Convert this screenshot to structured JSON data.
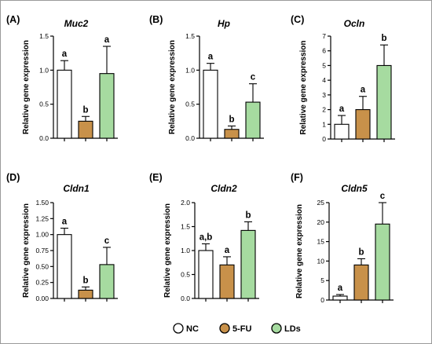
{
  "legend": {
    "items": [
      {
        "label": "NC",
        "color": "#ffffff"
      },
      {
        "label": "5-FU",
        "color": "#c8914a"
      },
      {
        "label": "LDs",
        "color": "#a6dba0"
      }
    ]
  },
  "chart_data": [
    {
      "type": "bar",
      "panel": "(A)",
      "title": "Muc2",
      "ylabel": "Relative gene expression",
      "categories": [
        "NC",
        "5-FU",
        "LDs"
      ],
      "values": [
        1.0,
        0.25,
        0.95
      ],
      "errors": [
        0.14,
        0.07,
        0.4
      ],
      "letters": [
        "a",
        "b",
        "a"
      ],
      "ylim": [
        0,
        1.5
      ],
      "yticks": [
        0.0,
        0.5,
        1.0,
        1.5
      ],
      "ytick_labels": [
        "0.0",
        "0.5",
        "1.0",
        "1.5"
      ]
    },
    {
      "type": "bar",
      "panel": "(B)",
      "title": "Hp",
      "ylabel": "Relative gene expression",
      "categories": [
        "NC",
        "5-FU",
        "LDs"
      ],
      "values": [
        1.0,
        0.13,
        0.53
      ],
      "errors": [
        0.1,
        0.05,
        0.27
      ],
      "letters": [
        "a",
        "b",
        "c"
      ],
      "ylim": [
        0,
        1.5
      ],
      "yticks": [
        0.0,
        0.5,
        1.0,
        1.5
      ],
      "ytick_labels": [
        "0.0",
        "0.5",
        "1.0",
        "1.5"
      ]
    },
    {
      "type": "bar",
      "panel": "(C)",
      "title": "Ocln",
      "ylabel": "Relative gene expression",
      "categories": [
        "NC",
        "5-FU",
        "LDs"
      ],
      "values": [
        1.0,
        2.0,
        5.0
      ],
      "errors": [
        0.6,
        0.9,
        1.4
      ],
      "letters": [
        "a",
        "a",
        "b"
      ],
      "ylim": [
        0,
        7
      ],
      "yticks": [
        0,
        1,
        2,
        3,
        4,
        5,
        6,
        7
      ],
      "ytick_labels": [
        "0",
        "1",
        "2",
        "3",
        "4",
        "5",
        "6",
        "7"
      ]
    },
    {
      "type": "bar",
      "panel": "(D)",
      "title": "Cldn1",
      "ylabel": "Relative gene expression",
      "categories": [
        "NC",
        "5-FU",
        "LDs"
      ],
      "values": [
        1.0,
        0.13,
        0.53
      ],
      "errors": [
        0.1,
        0.05,
        0.27
      ],
      "letters": [
        "a",
        "b",
        "c"
      ],
      "ylim": [
        0,
        1.5
      ],
      "yticks": [
        0.0,
        0.25,
        0.5,
        0.75,
        1.0,
        1.25,
        1.5
      ],
      "ytick_labels": [
        "0.00",
        "0.25",
        "0.50",
        "0.75",
        "1.00",
        "1.25",
        "1.50"
      ]
    },
    {
      "type": "bar",
      "panel": "(E)",
      "title": "Cldn2",
      "ylabel": "Relative gene expression",
      "categories": [
        "NC",
        "5-FU",
        "LDs"
      ],
      "values": [
        1.0,
        0.7,
        1.42
      ],
      "errors": [
        0.14,
        0.17,
        0.18
      ],
      "letters": [
        "a,b",
        "a",
        "b"
      ],
      "ylim": [
        0,
        2.0
      ],
      "yticks": [
        0.0,
        0.5,
        1.0,
        1.5,
        2.0
      ],
      "ytick_labels": [
        "0.0",
        "0.5",
        "1.0",
        "1.5",
        "2.0"
      ]
    },
    {
      "type": "bar",
      "panel": "(F)",
      "title": "Cldn5",
      "ylabel": "Relative gene expression",
      "categories": [
        "NC",
        "5-FU",
        "LDs"
      ],
      "values": [
        1.0,
        9.0,
        19.5
      ],
      "errors": [
        0.4,
        1.6,
        5.5
      ],
      "letters": [
        "a",
        "b",
        "c"
      ],
      "ylim": [
        0,
        25
      ],
      "yticks": [
        0,
        5,
        10,
        15,
        20,
        25
      ],
      "ytick_labels": [
        "0",
        "5",
        "10",
        "15",
        "20",
        "25"
      ]
    }
  ]
}
